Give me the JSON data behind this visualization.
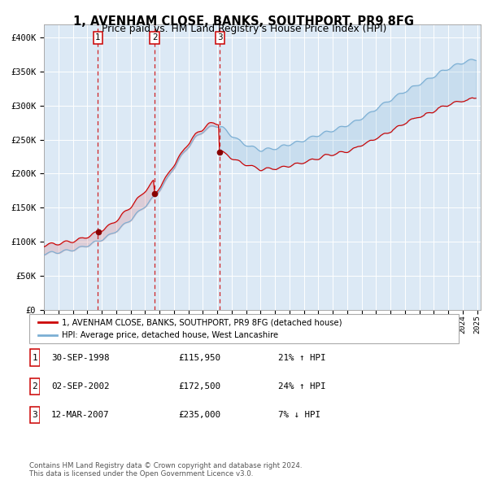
{
  "title": "1, AVENHAM CLOSE, BANKS, SOUTHPORT, PR9 8FG",
  "subtitle": "Price paid vs. HM Land Registry's House Price Index (HPI)",
  "bg_color": "#dce9f5",
  "red_line_color": "#cc0000",
  "blue_line_color": "#7bafd4",
  "sale_marker_color": "#880000",
  "vline_color": "#cc0000",
  "grid_color": "#ffffff",
  "ylim": [
    0,
    420000
  ],
  "yticks": [
    0,
    50000,
    100000,
    150000,
    200000,
    250000,
    300000,
    350000,
    400000
  ],
  "ytick_labels": [
    "£0",
    "£50K",
    "£100K",
    "£150K",
    "£200K",
    "£250K",
    "£300K",
    "£350K",
    "£400K"
  ],
  "sales": [
    {
      "date": "1998-09-30",
      "price": 115950,
      "label": "1",
      "pct": "21%",
      "dir": "↑"
    },
    {
      "date": "2002-09-02",
      "price": 172500,
      "label": "2",
      "pct": "24%",
      "dir": "↑"
    },
    {
      "date": "2007-03-12",
      "price": 235000,
      "label": "3",
      "pct": "7%",
      "dir": "↓"
    }
  ],
  "legend_entries": [
    {
      "label": "1, AVENHAM CLOSE, BANKS, SOUTHPORT, PR9 8FG (detached house)",
      "color": "#cc0000"
    },
    {
      "label": "HPI: Average price, detached house, West Lancashire",
      "color": "#7bafd4"
    }
  ],
  "table_rows": [
    [
      "1",
      "30-SEP-1998",
      "£115,950",
      "21% ↑ HPI"
    ],
    [
      "2",
      "02-SEP-2002",
      "£172,500",
      "24% ↑ HPI"
    ],
    [
      "3",
      "12-MAR-2007",
      "£235,000",
      "7% ↓ HPI"
    ]
  ],
  "footnote": "Contains HM Land Registry data © Crown copyright and database right 2024.\nThis data is licensed under the Open Government Licence v3.0."
}
